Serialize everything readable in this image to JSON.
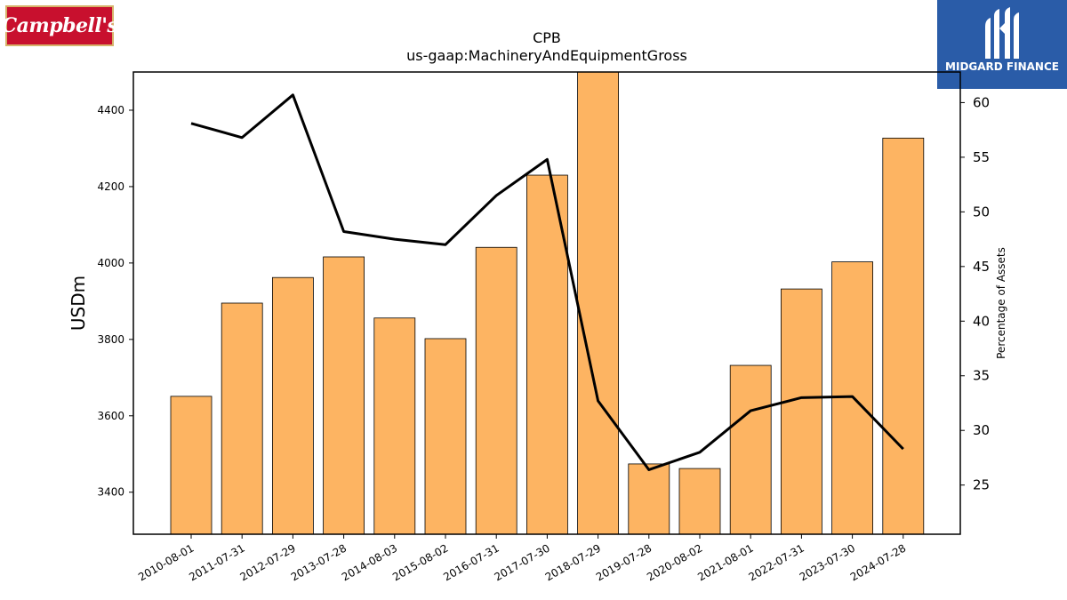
{
  "logos": {
    "left_text": "Campbell's",
    "right_text": "MIDGARD FINANCE",
    "right_icon": "midgard-logo-icon",
    "brand_color_left": "#c8102e",
    "brand_color_right": "#2a5ca8"
  },
  "chart_data": {
    "type": "bar",
    "title": "CPB",
    "subtitle": "us-gaap:MachineryAndEquipmentGross",
    "ylabel": "USDm",
    "y2label": "Percentage of Assets",
    "ylim": [
      3290,
      4500
    ],
    "y2lim": [
      20.5,
      62.8
    ],
    "yticks": [
      3400,
      3600,
      3800,
      4000,
      4200,
      4400
    ],
    "y2ticks": [
      25,
      30,
      35,
      40,
      45,
      50,
      55,
      60
    ],
    "categories": [
      "2010-08-01",
      "2011-07-31",
      "2012-07-29",
      "2013-07-28",
      "2014-08-03",
      "2015-08-02",
      "2016-07-31",
      "2017-07-30",
      "2018-07-29",
      "2019-07-28",
      "2020-08-02",
      "2021-08-01",
      "2022-07-31",
      "2023-07-30",
      "2024-07-28"
    ],
    "series": [
      {
        "type": "bar",
        "axis": "left",
        "color": "#fdb462",
        "values": [
          3651,
          3895,
          3962,
          4016,
          3856,
          3802,
          4041,
          4230,
          4500,
          3474,
          3462,
          3732,
          3932,
          4003,
          4327
        ]
      },
      {
        "type": "line",
        "axis": "right",
        "color": "#000000",
        "values": [
          58.1,
          56.8,
          60.7,
          48.2,
          47.5,
          47.0,
          51.5,
          54.8,
          32.7,
          26.4,
          28.0,
          31.8,
          33.0,
          33.1,
          28.3
        ]
      }
    ],
    "grid": false,
    "legend": "none"
  }
}
